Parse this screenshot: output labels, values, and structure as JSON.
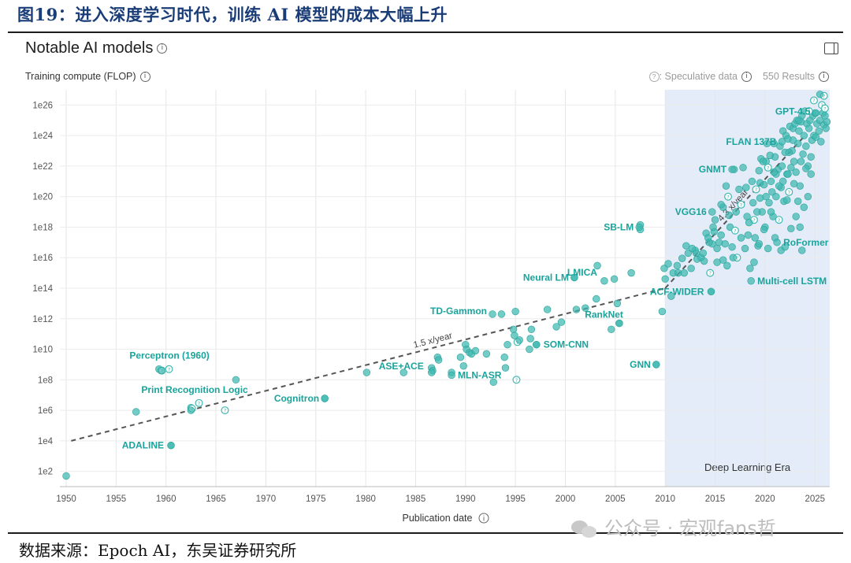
{
  "figure_title": "图19：进入深度学习时代，训练 AI 模型的成本大幅上升",
  "source_text": "数据来源：Epoch AI，东吴证券研究所",
  "watermark_text": "公众号 · 宏观fans哲",
  "header": {
    "title": "Notable AI models",
    "info_icon": "info-icon",
    "panel_icon": "sidebar-panel-icon",
    "speculative_label": ": Speculative data",
    "results_label": "550 Results"
  },
  "colors": {
    "point": "#3fb8b0",
    "label": "#1aa39b",
    "era_fill": "#e3ecf8",
    "trend": "#555555",
    "tick": "#555555"
  },
  "chart_data": {
    "type": "scatter",
    "ylabel": "Training compute (FLOP)",
    "xlabel": "Publication date",
    "y_scale": "log",
    "xlim": [
      1950,
      2026.5
    ],
    "ylim": [
      10.0,
      1e+27
    ],
    "x_ticks": [
      1950,
      1955,
      1960,
      1965,
      1970,
      1975,
      1980,
      1985,
      1990,
      1995,
      2000,
      2005,
      2010,
      2015,
      2020,
      2025
    ],
    "y_ticks": [
      {
        "value": 100,
        "label": "1e2"
      },
      {
        "value": 10000,
        "label": "1e4"
      },
      {
        "value": 1000000,
        "label": "1e6"
      },
      {
        "value": 100000000,
        "label": "1e8"
      },
      {
        "value": 10000000000,
        "label": "1e10"
      },
      {
        "value": 1000000000000,
        "label": "1e12"
      },
      {
        "value": 100000000000000,
        "label": "1e14"
      },
      {
        "value": 1e+16,
        "label": "1e16"
      },
      {
        "value": 1e+18,
        "label": "1e18"
      },
      {
        "value": 1e+20,
        "label": "1e20"
      },
      {
        "value": 1e+22,
        "label": "1e22"
      },
      {
        "value": 1e+24,
        "label": "1e24"
      },
      {
        "value": 1e+26,
        "label": "1e26"
      }
    ],
    "era": {
      "label": "Deep Learning Era",
      "start": 2010,
      "end": 2026.5
    },
    "trends": [
      {
        "label": "1.5 x/year",
        "x": [
          1950.5,
          2010
        ],
        "y": [
          10000,
          100000000000000
        ]
      },
      {
        "label": "4.3 x/year",
        "x": [
          2010,
          2024
        ],
        "y": [
          100000000000000,
          1e+24
        ]
      }
    ],
    "labeled_points": [
      {
        "name": "Perceptron (1960)",
        "x": 1959.5,
        "y": 400000000
      },
      {
        "name": "Print Recognition Logic",
        "x": 1962.5,
        "y": 1000000
      },
      {
        "name": "ADALINE",
        "x": 1960.5,
        "y": 5000
      },
      {
        "name": "Cognitron",
        "x": 1975.9,
        "y": 6000000
      },
      {
        "name": "ASE+ACE",
        "x": 1986.6,
        "y": 300000000
      },
      {
        "name": "MLN-ASR",
        "x": 1988.6,
        "y": 200000000
      },
      {
        "name": "TD-Gammon",
        "x": 1992.7,
        "y": 2000000000000
      },
      {
        "name": "SOM-CNN",
        "x": 1997.1,
        "y": 20000000000
      },
      {
        "name": "RankNet",
        "x": 2005.4,
        "y": 500000000000
      },
      {
        "name": "Neural LM",
        "x": 2000.9,
        "y": 500000000000000
      },
      {
        "name": "LMICA",
        "x": 2003.9,
        "y": 300000000000000
      },
      {
        "name": "SB-LM",
        "x": 2007.4,
        "y": 1e+18
      },
      {
        "name": "GNN",
        "x": 2009.1,
        "y": 1000000000
      },
      {
        "name": "ACF-WIDER",
        "x": 2014.6,
        "y": 60000000000000
      },
      {
        "name": "VGG16",
        "x": 2014.7,
        "y": 1e+19
      },
      {
        "name": "GNMT",
        "x": 2016.7,
        "y": 6e+21
      },
      {
        "name": "FLAN 137B",
        "x": 2021.7,
        "y": 4e+23
      },
      {
        "name": "GPT-4.5",
        "x": 2025.1,
        "y": 3e+25
      },
      {
        "name": "RoFormer",
        "x": 2021.2,
        "y": 1e+17
      },
      {
        "name": "Multi-cell LSTM",
        "x": 2018.6,
        "y": 300000000000000
      }
    ],
    "points": [
      [
        1950.0,
        50,
        0
      ],
      [
        1957.0,
        800000,
        0
      ],
      [
        1959.3,
        500000000,
        0
      ],
      [
        1959.6,
        400000000,
        1
      ],
      [
        1960.3,
        500000000,
        1
      ],
      [
        1960.5,
        5000,
        0
      ],
      [
        1962.5,
        1500000,
        0
      ],
      [
        1962.6,
        1300000,
        1
      ],
      [
        1963.3,
        3000000,
        1
      ],
      [
        1965.9,
        1000000,
        1
      ],
      [
        1967.0,
        100000000,
        0
      ],
      [
        1975.9,
        6000000,
        0
      ],
      [
        1980.1,
        300000000,
        0
      ],
      [
        1983.8,
        300000000,
        0
      ],
      [
        1986.6,
        600000000,
        0
      ],
      [
        1986.7,
        400000000,
        0
      ],
      [
        1987.2,
        3000000000,
        0
      ],
      [
        1987.3,
        2000000000,
        0
      ],
      [
        1988.6,
        300000000,
        0
      ],
      [
        1989.5,
        3000000000,
        0
      ],
      [
        1989.8,
        800000000,
        0
      ],
      [
        1990.0,
        20000000000,
        0
      ],
      [
        1990.1,
        10000000000,
        0
      ],
      [
        1990.4,
        6000000000,
        0
      ],
      [
        1990.6,
        5000000000,
        0
      ],
      [
        1991.0,
        8000000000,
        0
      ],
      [
        1992.1,
        5000000000,
        0
      ],
      [
        1992.8,
        70000000,
        0
      ],
      [
        1993.6,
        2000000000000,
        0
      ],
      [
        1993.9,
        3000000000,
        0
      ],
      [
        1994.0,
        600000000,
        0
      ],
      [
        1994.2,
        20000000000,
        0
      ],
      [
        1994.8,
        200000000000,
        0
      ],
      [
        1994.9,
        80000000000,
        0
      ],
      [
        1995.0,
        3000000000000,
        0
      ],
      [
        1995.1,
        100000000,
        1
      ],
      [
        1995.2,
        30000000000,
        1
      ],
      [
        1995.4,
        40000000000,
        0
      ],
      [
        1996.4,
        10000000000,
        0
      ],
      [
        1996.5,
        50000000000,
        0
      ],
      [
        1996.6,
        200000000000,
        0
      ],
      [
        1997.1,
        20000000000,
        0
      ],
      [
        1998.2,
        4000000000000,
        0
      ],
      [
        1999.1,
        300000000000,
        0
      ],
      [
        1999.6,
        600000000000,
        0
      ],
      [
        2000.9,
        500000000000000,
        0
      ],
      [
        2001.1,
        4000000000000,
        0
      ],
      [
        2002.0,
        5000000000000,
        0
      ],
      [
        2003.1,
        20000000000000,
        0
      ],
      [
        2003.2,
        3000000000000000,
        0
      ],
      [
        2004.6,
        200000000000,
        0
      ],
      [
        2004.9,
        400000000000000,
        0
      ],
      [
        2005.2,
        10000000000000,
        0
      ],
      [
        2005.4,
        500000000000,
        0
      ],
      [
        2006.6,
        1000000000000000,
        0
      ],
      [
        2007.5,
        1.4e+18,
        0
      ],
      [
        2007.5,
        7e+17,
        0
      ],
      [
        2009.1,
        1000000000,
        0
      ],
      [
        2009.7,
        3000000000000,
        0
      ],
      [
        2009.9,
        2000000000000000,
        0
      ],
      [
        2010.0,
        400000000000000,
        0
      ],
      [
        2010.3,
        4000000000000000,
        0
      ],
      [
        2010.6,
        30000000000000,
        0
      ],
      [
        2010.8,
        1000000000000000,
        0
      ],
      [
        2011.3,
        1000000000000000,
        0
      ],
      [
        2011.9,
        1000000000000000,
        0
      ],
      [
        2012.1,
        6e+16,
        0
      ],
      [
        2012.3,
        2e+16,
        0
      ],
      [
        2012.6,
        2000000000000000.0,
        0
      ],
      [
        2013.0,
        3e+16,
        0
      ],
      [
        2013.2,
        8000000000000000.0,
        0
      ],
      [
        2013.6,
        1e+16,
        0
      ],
      [
        2013.8,
        2e+16,
        0
      ],
      [
        2014.1,
        4e+17,
        0
      ],
      [
        2014.3,
        2e+17,
        0
      ],
      [
        2014.5,
        1000000000000000.0,
        1
      ],
      [
        2014.6,
        60000000000000,
        0
      ],
      [
        2014.7,
        8e+16,
        0
      ],
      [
        2014.9,
        5e+17,
        0
      ],
      [
        2015.0,
        3e+18,
        0
      ],
      [
        2015.2,
        5000000000000000.0,
        0
      ],
      [
        2015.4,
        1e+17,
        0
      ],
      [
        2015.6,
        3e+17,
        0
      ],
      [
        2015.8,
        2e+19,
        0
      ],
      [
        2016.0,
        8e+16,
        0
      ],
      [
        2016.1,
        5e+20,
        0
      ],
      [
        2016.3,
        1e+20,
        1
      ],
      [
        2016.5,
        1e+18,
        0
      ],
      [
        2016.7,
        5e+16,
        0
      ],
      [
        2016.9,
        6e+21,
        0
      ],
      [
        2017.0,
        6e+17,
        1
      ],
      [
        2017.2,
        1e+16,
        1
      ],
      [
        2017.4,
        3e+20,
        0
      ],
      [
        2017.6,
        3e+19,
        1
      ],
      [
        2017.8,
        8e+21,
        0
      ],
      [
        2018.0,
        4e+16,
        0
      ],
      [
        2018.2,
        5e+18,
        0
      ],
      [
        2018.3,
        3e+17,
        0
      ],
      [
        2018.5,
        2000000000000000.0,
        0
      ],
      [
        2018.7,
        1e+21,
        0
      ],
      [
        2018.8,
        4e+19,
        0
      ],
      [
        2018.9,
        3e+18,
        1
      ],
      [
        2019.0,
        2e+17,
        0
      ],
      [
        2019.1,
        3e+20,
        1
      ],
      [
        2019.3,
        6e+16,
        0
      ],
      [
        2019.4,
        5e+21,
        0
      ],
      [
        2019.5,
        8e+19,
        0
      ],
      [
        2019.6,
        3e+22,
        0
      ],
      [
        2019.7,
        1e+19,
        0
      ],
      [
        2019.9,
        6e+20,
        0
      ],
      [
        2020.0,
        1e+18,
        0
      ],
      [
        2020.1,
        2e+22,
        0
      ],
      [
        2020.2,
        3e+23,
        0
      ],
      [
        2020.3,
        8e+21,
        1
      ],
      [
        2020.4,
        4e+19,
        0
      ],
      [
        2020.6,
        1e+21,
        0
      ],
      [
        2020.7,
        2e+20,
        0
      ],
      [
        2020.8,
        5e+18,
        0
      ],
      [
        2020.9,
        3e+23,
        0
      ],
      [
        2021.0,
        4e+22,
        0
      ],
      [
        2021.1,
        1e+20,
        0
      ],
      [
        2021.3,
        6e+21,
        0
      ],
      [
        2021.4,
        3e+18,
        1
      ],
      [
        2021.5,
        2e+23,
        0
      ],
      [
        2021.6,
        4e+20,
        0
      ],
      [
        2021.7,
        1e+22,
        0
      ],
      [
        2021.8,
        2e+24,
        0
      ],
      [
        2021.9,
        5e+19,
        0
      ],
      [
        2022.0,
        8e+22,
        0
      ],
      [
        2022.1,
        1e+24,
        0
      ],
      [
        2022.2,
        3e+21,
        0
      ],
      [
        2022.3,
        6e+23,
        0
      ],
      [
        2022.4,
        2e+20,
        1
      ],
      [
        2022.5,
        4e+24,
        0
      ],
      [
        2022.6,
        8e+21,
        0
      ],
      [
        2022.7,
        1e+23,
        0
      ],
      [
        2022.8,
        3e+24,
        0
      ],
      [
        2022.9,
        2e+22,
        0
      ],
      [
        2023.0,
        6e+24,
        0
      ],
      [
        2023.1,
        4e+21,
        0
      ],
      [
        2023.2,
        1e+25,
        0
      ],
      [
        2023.3,
        3e+23,
        0
      ],
      [
        2023.4,
        2e+24,
        0
      ],
      [
        2023.5,
        5e+20,
        0
      ],
      [
        2023.6,
        8e+24,
        0
      ],
      [
        2023.7,
        2e+25,
        0
      ],
      [
        2023.8,
        6e+22,
        0
      ],
      [
        2023.9,
        1e+24,
        0
      ],
      [
        2024.0,
        4e+25,
        0
      ],
      [
        2024.1,
        2e+23,
        0
      ],
      [
        2024.2,
        6e+24,
        0
      ],
      [
        2024.3,
        1e+22,
        0
      ],
      [
        2024.4,
        3e+24,
        0
      ],
      [
        2024.5,
        1e+25,
        0
      ],
      [
        2024.6,
        3e+21,
        0
      ],
      [
        2024.7,
        5e+23,
        0
      ],
      [
        2024.8,
        2e+25,
        0
      ],
      [
        2024.9,
        1e+24,
        0
      ],
      [
        2025.0,
        3e+25,
        0
      ],
      [
        2025.1,
        8e+23,
        0
      ],
      [
        2025.2,
        6e+24,
        0
      ],
      [
        2025.4,
        2e+24,
        0
      ],
      [
        2025.5,
        1e+25,
        0
      ],
      [
        2025.6,
        4e+23,
        0
      ],
      [
        2025.8,
        3e+25,
        0
      ],
      [
        2025.9,
        5e+24,
        0
      ],
      [
        2026.0,
        2e+25,
        0
      ],
      [
        2026.1,
        3e+24,
        0
      ],
      [
        2026.2,
        8e+24,
        0
      ],
      [
        2025.7,
        1e+26,
        1
      ],
      [
        2026.0,
        6e+25,
        1
      ],
      [
        2025.9,
        4e+26,
        1
      ],
      [
        2024.9,
        2e+26,
        1
      ],
      [
        2025.5,
        5e+26,
        0
      ],
      [
        2024.4,
        4e+25,
        1
      ],
      [
        2023.4,
        1e+25,
        0
      ],
      [
        2022.8,
        5e+23,
        0
      ],
      [
        2022.4,
        8e+22,
        0
      ],
      [
        2020.5,
        5e+22,
        0
      ],
      [
        2019.8,
        2e+22,
        0
      ],
      [
        2021.1,
        3e+21,
        0
      ],
      [
        2020.1,
        1e+20,
        0
      ],
      [
        2019.2,
        1e+19,
        0
      ],
      [
        2018.4,
        2e+18,
        0
      ],
      [
        2017.6,
        2e+17,
        0
      ],
      [
        2016.8,
        1e+16,
        0
      ],
      [
        2016.2,
        3000000000000000.0,
        0
      ],
      [
        2015.8,
        7000000000000000.0,
        0
      ],
      [
        2015.2,
        4e+16,
        0
      ],
      [
        2014.4,
        1e+17,
        0
      ],
      [
        2013.9,
        6000000000000000.0,
        0
      ],
      [
        2013.1,
        2e+16,
        0
      ],
      [
        2012.7,
        4e+16,
        0
      ],
      [
        2011.7,
        9000000000000000.0,
        0
      ],
      [
        2011.2,
        3000000000000000.0,
        0
      ],
      [
        2019.9,
        7e+17,
        0
      ],
      [
        2020.3,
        4e+16,
        0
      ],
      [
        2021.0,
        2e+17,
        0
      ],
      [
        2021.6,
        3e+16,
        0
      ],
      [
        2022.0,
        5e+16,
        0
      ],
      [
        2022.6,
        8e+17,
        0
      ],
      [
        2023.1,
        5e+18,
        0
      ],
      [
        2023.5,
        1e+18,
        0
      ],
      [
        2023.7,
        3e+16,
        0
      ],
      [
        2023.9,
        2e+19,
        0
      ],
      [
        2024.3,
        1e+20,
        0
      ],
      [
        2022.2,
        6e+19,
        0
      ],
      [
        2021.8,
        1e+21,
        0
      ],
      [
        2020.9,
        4e+21,
        0
      ],
      [
        2019.5,
        8e+20,
        0
      ],
      [
        2018.1,
        4e+20,
        0
      ],
      [
        2017.1,
        1e+19,
        0
      ],
      [
        2016.4,
        6e+18,
        0
      ],
      [
        2015.6,
        3e+19,
        0
      ],
      [
        2014.8,
        1e+18,
        0
      ],
      [
        2018.9,
        5000000000000000.0,
        0
      ],
      [
        2019.4,
        8e+16,
        0
      ],
      [
        2020.6,
        1e+19,
        0
      ],
      [
        2021.4,
        5e+20,
        0
      ],
      [
        2022.9,
        7e+20,
        0
      ],
      [
        2023.3,
        5e+19,
        0
      ],
      [
        2024.6,
        4e+22,
        0
      ],
      [
        2024.1,
        7e+21,
        0
      ],
      [
        2023.6,
        2e+22,
        0
      ],
      [
        2022.3,
        3e+21,
        0
      ]
    ]
  }
}
